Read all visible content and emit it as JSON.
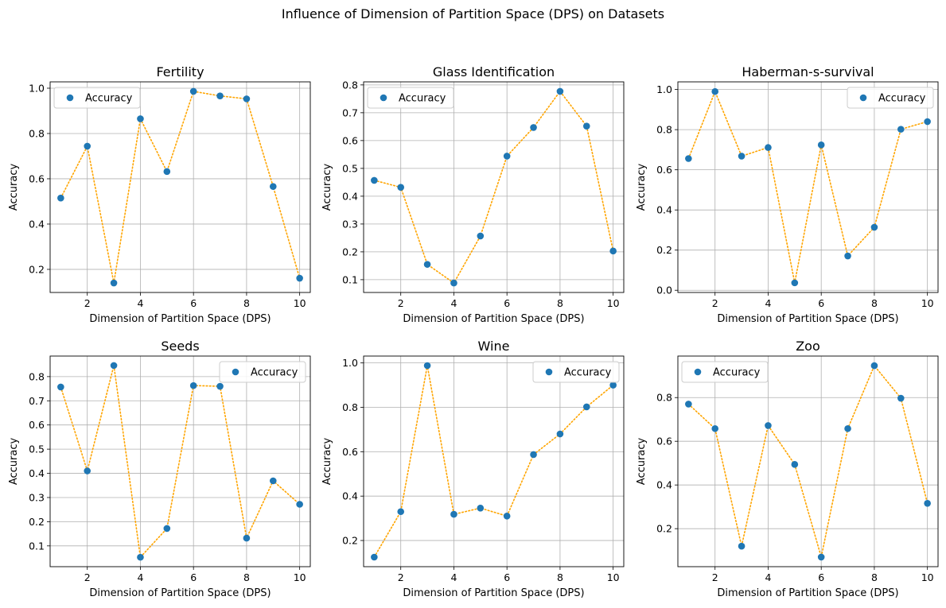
{
  "figure": {
    "title": "Influence of Dimension of Partition Space (DPS) on Datasets"
  },
  "style": {
    "point_color": "#1f77b4",
    "line_color": "#ffa500",
    "grid_color": "#b0b0b0"
  },
  "chart_data": [
    {
      "type": "scatter",
      "title": "Fertility",
      "xlabel": "Dimension of Partition Space (DPS)",
      "ylabel": "Accuracy",
      "x": [
        1,
        2,
        3,
        4,
        5,
        6,
        7,
        8,
        9,
        10
      ],
      "series": [
        {
          "name": "Accuracy",
          "values": [
            0.515,
            0.744,
            0.14,
            0.865,
            0.632,
            0.986,
            0.966,
            0.953,
            0.566,
            0.161
          ]
        }
      ],
      "xlim": [
        0.6,
        10.4
      ],
      "ylim": [
        0.098,
        1.028
      ],
      "xticks": [
        2,
        4,
        6,
        8,
        10
      ],
      "yticks": [
        0.2,
        0.4,
        0.6,
        0.8,
        1.0
      ],
      "ytick_labels": [
        "0.2",
        "0.4",
        "0.6",
        "0.8",
        "1.0"
      ],
      "legend_loc": "upper left",
      "grid": true,
      "connector": "dotted"
    },
    {
      "type": "scatter",
      "title": "Glass Identification",
      "xlabel": "Dimension of Partition Space (DPS)",
      "ylabel": "Accuracy",
      "x": [
        1,
        2,
        3,
        4,
        5,
        6,
        7,
        8,
        9,
        10
      ],
      "series": [
        {
          "name": "Accuracy",
          "values": [
            0.457,
            0.432,
            0.155,
            0.088,
            0.257,
            0.544,
            0.647,
            0.777,
            0.652,
            0.203
          ]
        }
      ],
      "xlim": [
        0.6,
        10.4
      ],
      "ylim": [
        0.054,
        0.811
      ],
      "xticks": [
        2,
        4,
        6,
        8,
        10
      ],
      "yticks": [
        0.1,
        0.2,
        0.3,
        0.4,
        0.5,
        0.6,
        0.7,
        0.8
      ],
      "ytick_labels": [
        "0.1",
        "0.2",
        "0.3",
        "0.4",
        "0.5",
        "0.6",
        "0.7",
        "0.8"
      ],
      "legend_loc": "upper left",
      "grid": true,
      "connector": "dotted"
    },
    {
      "type": "scatter",
      "title": "Haberman-s-survival",
      "xlabel": "Dimension of Partition Space (DPS)",
      "ylabel": "Accuracy",
      "x": [
        1,
        2,
        3,
        4,
        5,
        6,
        7,
        8,
        9,
        10
      ],
      "series": [
        {
          "name": "Accuracy",
          "values": [
            0.656,
            0.99,
            0.668,
            0.711,
            0.037,
            0.724,
            0.171,
            0.314,
            0.802,
            0.84
          ]
        }
      ],
      "xlim": [
        0.6,
        10.4
      ],
      "ylim": [
        -0.011,
        1.038
      ],
      "xticks": [
        2,
        4,
        6,
        8,
        10
      ],
      "yticks": [
        0.0,
        0.2,
        0.4,
        0.6,
        0.8,
        1.0
      ],
      "ytick_labels": [
        "0.0",
        "0.2",
        "0.4",
        "0.6",
        "0.8",
        "1.0"
      ],
      "legend_loc": "upper right",
      "grid": true,
      "connector": "dotted"
    },
    {
      "type": "scatter",
      "title": "Seeds",
      "xlabel": "Dimension of Partition Space (DPS)",
      "ylabel": "Accuracy",
      "x": [
        1,
        2,
        3,
        4,
        5,
        6,
        7,
        8,
        9,
        10
      ],
      "series": [
        {
          "name": "Accuracy",
          "values": [
            0.757,
            0.41,
            0.846,
            0.053,
            0.172,
            0.763,
            0.76,
            0.132,
            0.369,
            0.272
          ]
        }
      ],
      "xlim": [
        0.6,
        10.4
      ],
      "ylim": [
        0.014,
        0.885
      ],
      "xticks": [
        2,
        4,
        6,
        8,
        10
      ],
      "yticks": [
        0.1,
        0.2,
        0.3,
        0.4,
        0.5,
        0.6,
        0.7,
        0.8
      ],
      "ytick_labels": [
        "0.1",
        "0.2",
        "0.3",
        "0.4",
        "0.5",
        "0.6",
        "0.7",
        "0.8"
      ],
      "legend_loc": "upper right",
      "grid": true,
      "connector": "dotted"
    },
    {
      "type": "scatter",
      "title": "Wine",
      "xlabel": "Dimension of Partition Space (DPS)",
      "ylabel": "Accuracy",
      "x": [
        1,
        2,
        3,
        4,
        5,
        6,
        7,
        8,
        9,
        10
      ],
      "series": [
        {
          "name": "Accuracy",
          "values": [
            0.125,
            0.33,
            0.988,
            0.318,
            0.346,
            0.31,
            0.587,
            0.68,
            0.802,
            0.9
          ]
        }
      ],
      "xlim": [
        0.6,
        10.4
      ],
      "ylim": [
        0.082,
        1.031
      ],
      "xticks": [
        2,
        4,
        6,
        8,
        10
      ],
      "yticks": [
        0.2,
        0.4,
        0.6,
        0.8,
        1.0
      ],
      "ytick_labels": [
        "0.2",
        "0.4",
        "0.6",
        "0.8",
        "1.0"
      ],
      "legend_loc": "upper right",
      "grid": true,
      "connector": "dotted"
    },
    {
      "type": "scatter",
      "title": "Zoo",
      "xlabel": "Dimension of Partition Space (DPS)",
      "ylabel": "Accuracy",
      "x": [
        1,
        2,
        3,
        4,
        5,
        6,
        7,
        8,
        9,
        10
      ],
      "series": [
        {
          "name": "Accuracy",
          "values": [
            0.77,
            0.658,
            0.12,
            0.672,
            0.494,
            0.07,
            0.658,
            0.946,
            0.797,
            0.316
          ]
        }
      ],
      "xlim": [
        0.6,
        10.4
      ],
      "ylim": [
        0.026,
        0.99
      ],
      "xticks": [
        2,
        4,
        6,
        8,
        10
      ],
      "yticks": [
        0.2,
        0.4,
        0.6,
        0.8
      ],
      "ytick_labels": [
        "0.2",
        "0.4",
        "0.6",
        "0.8"
      ],
      "legend_loc": "upper left",
      "grid": true,
      "connector": "dotted"
    }
  ]
}
